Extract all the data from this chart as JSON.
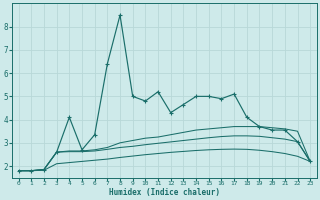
{
  "xlabel": "Humidex (Indice chaleur)",
  "background_color": "#ceeaea",
  "grid_color": "#b8d8d8",
  "line_color": "#1a6e6a",
  "xlim": [
    -0.5,
    23.5
  ],
  "ylim": [
    1.5,
    9.0
  ],
  "x_values": [
    0,
    1,
    2,
    3,
    4,
    5,
    6,
    7,
    8,
    9,
    10,
    11,
    12,
    13,
    14,
    15,
    16,
    17,
    18,
    19,
    20,
    21,
    22,
    23
  ],
  "line1_y": [
    1.8,
    1.8,
    1.85,
    2.6,
    4.1,
    2.7,
    3.35,
    6.4,
    8.5,
    5.0,
    4.8,
    5.2,
    4.3,
    4.65,
    5.0,
    5.0,
    4.9,
    5.1,
    4.1,
    3.7,
    3.55,
    3.55,
    3.05,
    2.2
  ],
  "line2_y": [
    1.8,
    1.8,
    1.85,
    2.6,
    2.65,
    2.65,
    2.7,
    2.8,
    3.0,
    3.1,
    3.2,
    3.25,
    3.35,
    3.45,
    3.55,
    3.6,
    3.65,
    3.7,
    3.7,
    3.7,
    3.65,
    3.6,
    3.5,
    2.2
  ],
  "line3_y": [
    1.8,
    1.8,
    1.85,
    2.6,
    2.62,
    2.62,
    2.65,
    2.72,
    2.8,
    2.85,
    2.92,
    2.98,
    3.04,
    3.1,
    3.16,
    3.22,
    3.27,
    3.3,
    3.3,
    3.28,
    3.22,
    3.16,
    3.05,
    2.2
  ],
  "line4_y": [
    1.8,
    1.8,
    1.82,
    2.1,
    2.15,
    2.2,
    2.25,
    2.3,
    2.37,
    2.43,
    2.49,
    2.54,
    2.59,
    2.63,
    2.67,
    2.7,
    2.72,
    2.73,
    2.72,
    2.68,
    2.62,
    2.54,
    2.42,
    2.2
  ],
  "yticks": [
    2,
    3,
    4,
    5,
    6,
    7,
    8
  ],
  "xticks": [
    0,
    1,
    2,
    3,
    4,
    5,
    6,
    7,
    8,
    9,
    10,
    11,
    12,
    13,
    14,
    15,
    16,
    17,
    18,
    19,
    20,
    21,
    22,
    23
  ]
}
